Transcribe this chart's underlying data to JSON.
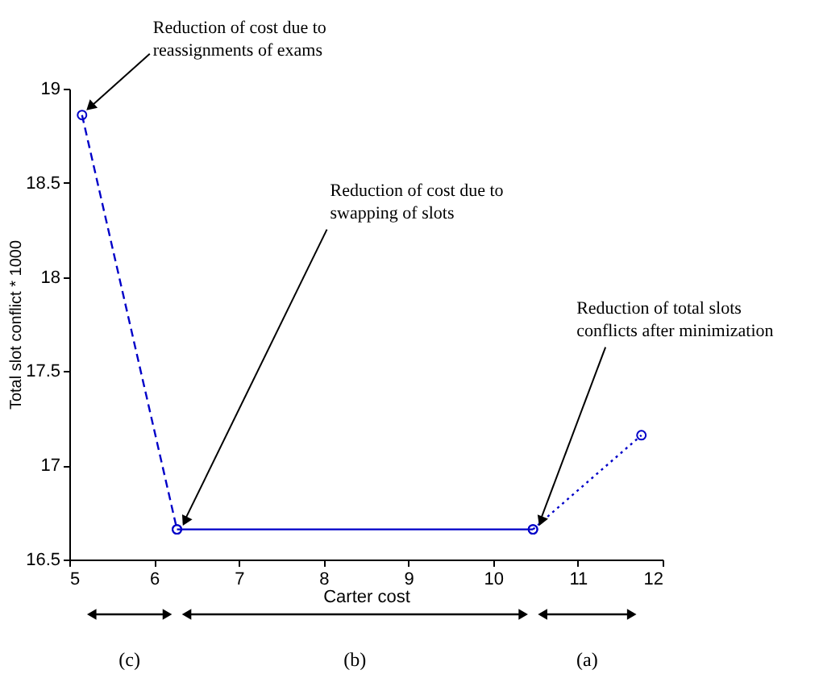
{
  "chart_data": {
    "type": "line",
    "xlabel": "Carter cost",
    "ylabel": "Total slot conflict * 1000",
    "xlim": [
      5,
      12
    ],
    "xticks": [
      5,
      6,
      7,
      8,
      9,
      10,
      11,
      12
    ],
    "ylim": [
      16.5,
      19
    ],
    "yticks": [
      16.5,
      17,
      17.5,
      18,
      18.5,
      19
    ],
    "grid": false,
    "marker": "circle",
    "series": [
      {
        "color": "#0000c8",
        "line_style": "dashed",
        "x": [
          5.15,
          6.27
        ],
        "values": [
          18.86,
          16.66
        ]
      },
      {
        "color": "#0000c8",
        "line_style": "solid",
        "x": [
          6.27,
          10.47
        ],
        "values": [
          16.66,
          16.66
        ]
      },
      {
        "color": "#0000c8",
        "line_style": "dotted",
        "x": [
          10.47,
          11.75
        ],
        "values": [
          16.66,
          17.16
        ]
      }
    ],
    "annotations": [
      {
        "text": "Reduction of cost due to\nreassignments of exams",
        "x": 5.15,
        "y": 18.86
      },
      {
        "text": "Reduction of cost due to\nswapping of slots",
        "x": 6.27,
        "y": 16.66
      },
      {
        "text": "Reduction of total slots\nconflicts after minimization",
        "x": 10.47,
        "y": 16.66
      },
      "(c)",
      "(b)",
      "(a)"
    ]
  }
}
